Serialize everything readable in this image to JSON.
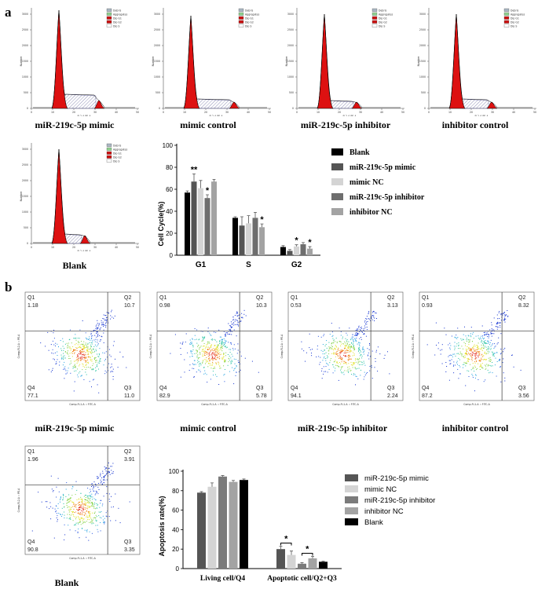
{
  "panels": {
    "a": "a",
    "b": "b"
  },
  "histograms": {
    "legend": [
      "Debris",
      "Aggregates",
      "Dip G1",
      "Dip G2",
      "Dip S"
    ],
    "xlabel": "FL2-A PE-A",
    "ylabel": "Number",
    "yticks": [
      "0",
      "500",
      "1000",
      "1500",
      "2000",
      "2500",
      "3000"
    ],
    "xticks": [
      "0",
      "10",
      "20",
      "30",
      "40",
      "50"
    ],
    "items": [
      {
        "caption": "miR-219c-5p mimic"
      },
      {
        "caption": "mimic  control"
      },
      {
        "caption": "miR-219c-5p inhibitor"
      },
      {
        "caption": "inhibitor  control"
      },
      {
        "caption": "Blank"
      }
    ]
  },
  "flow": {
    "xlabel": "Comp-FL1-A :: FITC-A",
    "ylabel": "Comp-FL2-A :: PE-A",
    "items": [
      {
        "caption": "miR-219c-5p mimic",
        "q1": "Q1",
        "q2": "Q2",
        "q3": "Q3",
        "q4": "Q4",
        "v1": "1.18",
        "v2": "10.7",
        "v3": "11.0",
        "v4": "77.1"
      },
      {
        "caption": "mimic  control",
        "q1": "Q1",
        "q2": "Q2",
        "q3": "Q3",
        "q4": "Q4",
        "v1": "0.98",
        "v2": "10.3",
        "v3": "5.78",
        "v4": "82.9"
      },
      {
        "caption": "miR-219c-5p inhibitor",
        "q1": "Q1",
        "q2": "Q2",
        "q3": "Q3",
        "q4": "Q4",
        "v1": "0.53",
        "v2": "3.13",
        "v3": "2.24",
        "v4": "94.1"
      },
      {
        "caption": "inhibitor  control",
        "q1": "Q1",
        "q2": "Q2",
        "q3": "Q3",
        "q4": "Q4",
        "v1": "0.93",
        "v2": "8.32",
        "v3": "3.56",
        "v4": "87.2"
      },
      {
        "caption": "Blank",
        "q1": "Q1",
        "q2": "Q2",
        "q3": "Q3",
        "q4": "Q4",
        "v1": "1.96",
        "v2": "3.91",
        "v3": "3.35",
        "v4": "90.8"
      }
    ]
  },
  "chart_data": [
    {
      "type": "bar",
      "ylabel": "Cell Cycle(%)",
      "categories": [
        "G1",
        "S",
        "G2"
      ],
      "ylim": [
        0,
        100
      ],
      "yticks": [
        "0",
        "20",
        "40",
        "60",
        "80",
        "100"
      ],
      "series": [
        {
          "name": "Blank",
          "color": "#000000",
          "values": [
            57,
            34,
            7.5
          ],
          "err": [
            1.5,
            1,
            1.2
          ]
        },
        {
          "name": "miR-219c-5p mimic",
          "color": "#555555",
          "values": [
            67,
            27,
            4
          ],
          "err": [
            7,
            8,
            1.2
          ]
        },
        {
          "name": "mimic NC",
          "color": "#d4d4d4",
          "values": [
            61,
            29,
            8
          ],
          "err": [
            7,
            7,
            1.5
          ]
        },
        {
          "name": "miR-219c-5p inhibitor",
          "color": "#6e6e6e",
          "values": [
            52,
            34,
            10
          ],
          "err": [
            3,
            5,
            1.5
          ]
        },
        {
          "name": "inhibitor NC",
          "color": "#a3a3a3",
          "values": [
            67,
            25.5,
            6
          ],
          "err": [
            2,
            3,
            1.8
          ]
        }
      ],
      "annotations": [
        {
          "category": "G1",
          "series": 1,
          "text": "**"
        },
        {
          "category": "G1",
          "series": 3,
          "text": "*"
        },
        {
          "category": "S",
          "series": 4,
          "text": "*"
        },
        {
          "category": "G2",
          "series": 2,
          "text": "*"
        },
        {
          "category": "G2",
          "series": 4,
          "text": "*"
        }
      ]
    },
    {
      "type": "bar",
      "ylabel": "Apoptosis rate(%)",
      "categories": [
        "Living cell/Q4",
        "Apoptotic cell/Q2+Q3"
      ],
      "ylim": [
        0,
        100
      ],
      "yticks": [
        "0",
        "20",
        "40",
        "60",
        "80",
        "100"
      ],
      "series": [
        {
          "name": "miR-219c-5p mimic",
          "color": "#555555",
          "values": [
            78,
            20
          ],
          "err": [
            1,
            3
          ]
        },
        {
          "name": "mimic NC",
          "color": "#d4d4d4",
          "values": [
            84,
            14
          ],
          "err": [
            4,
            4
          ]
        },
        {
          "name": "miR-219c-5p inhibitor",
          "color": "#7b7b7b",
          "values": [
            94.5,
            5
          ],
          "err": [
            1,
            1
          ]
        },
        {
          "name": "inhibitor NC",
          "color": "#a3a3a3",
          "values": [
            89,
            10.5
          ],
          "err": [
            1.5,
            2
          ]
        },
        {
          "name": "Blank",
          "color": "#000000",
          "values": [
            91,
            7
          ],
          "err": [
            1,
            0.5
          ]
        }
      ],
      "annotations": [
        {
          "category": "Apoptotic cell/Q2+Q3",
          "series": [
            0,
            1
          ],
          "text": "*"
        },
        {
          "category": "Apoptotic cell/Q2+Q3",
          "series": [
            2,
            3
          ],
          "text": "*"
        }
      ]
    }
  ]
}
